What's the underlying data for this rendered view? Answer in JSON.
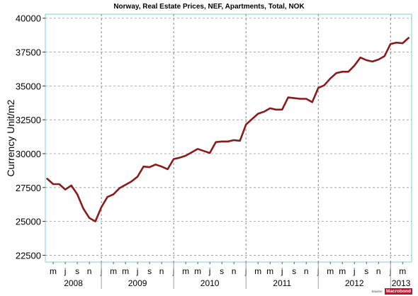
{
  "chart_data": {
    "type": "line",
    "title": "Norway, Real Estate Prices, NEF, Apartments, Total, NOK",
    "ylabel": "Currency Unit/m2",
    "xlabel": "",
    "ylim": [
      22000,
      40300
    ],
    "y_ticks": [
      22500,
      25000,
      27500,
      30000,
      32500,
      35000,
      37500,
      40000
    ],
    "y_tick_labels": [
      "22500",
      "25000",
      "27500",
      "30000",
      "32500",
      "35000",
      "37500",
      "40000"
    ],
    "x_month_ticks": [
      {
        "date": "2008-05",
        "label": "m"
      },
      {
        "date": "2008-07",
        "label": "j"
      },
      {
        "date": "2008-09",
        "label": "s"
      },
      {
        "date": "2008-11",
        "label": "n"
      },
      {
        "date": "2009-01",
        "label": "j"
      },
      {
        "date": "2009-03",
        "label": "m"
      },
      {
        "date": "2009-05",
        "label": "m"
      },
      {
        "date": "2009-07",
        "label": "j"
      },
      {
        "date": "2009-09",
        "label": "s"
      },
      {
        "date": "2009-11",
        "label": "n"
      },
      {
        "date": "2010-01",
        "label": "j"
      },
      {
        "date": "2010-03",
        "label": "m"
      },
      {
        "date": "2010-05",
        "label": "m"
      },
      {
        "date": "2010-07",
        "label": "j"
      },
      {
        "date": "2010-09",
        "label": "s"
      },
      {
        "date": "2010-11",
        "label": "n"
      },
      {
        "date": "2011-01",
        "label": "j"
      },
      {
        "date": "2011-03",
        "label": "m"
      },
      {
        "date": "2011-05",
        "label": "m"
      },
      {
        "date": "2011-07",
        "label": "j"
      },
      {
        "date": "2011-09",
        "label": "s"
      },
      {
        "date": "2011-11",
        "label": "n"
      },
      {
        "date": "2012-01",
        "label": "j"
      },
      {
        "date": "2012-03",
        "label": "m"
      },
      {
        "date": "2012-05",
        "label": "m"
      },
      {
        "date": "2012-07",
        "label": "j"
      },
      {
        "date": "2012-09",
        "label": "s"
      },
      {
        "date": "2012-11",
        "label": "n"
      },
      {
        "date": "2013-01",
        "label": "j"
      },
      {
        "date": "2013-03",
        "label": "m"
      }
    ],
    "x_year_labels": [
      "2008",
      "2009",
      "2010",
      "2011",
      "2012",
      "2013"
    ],
    "grid": true,
    "grid_style": "dashed",
    "legend": "none",
    "series": [
      {
        "color": "#8b1a1a",
        "points": [
          [
            "2008-04",
            28150
          ],
          [
            "2008-05",
            27750
          ],
          [
            "2008-06",
            27750
          ],
          [
            "2008-07",
            27350
          ],
          [
            "2008-08",
            27650
          ],
          [
            "2008-09",
            27000
          ],
          [
            "2008-10",
            25950
          ],
          [
            "2008-11",
            25250
          ],
          [
            "2008-12",
            25000
          ],
          [
            "2009-01",
            26050
          ],
          [
            "2009-02",
            26800
          ],
          [
            "2009-03",
            27000
          ],
          [
            "2009-04",
            27450
          ],
          [
            "2009-05",
            27700
          ],
          [
            "2009-06",
            27950
          ],
          [
            "2009-07",
            28300
          ],
          [
            "2009-08",
            29050
          ],
          [
            "2009-09",
            29000
          ],
          [
            "2009-10",
            29200
          ],
          [
            "2009-11",
            29050
          ],
          [
            "2009-12",
            28850
          ],
          [
            "2010-01",
            29600
          ],
          [
            "2010-02",
            29700
          ],
          [
            "2010-03",
            29850
          ],
          [
            "2010-04",
            30100
          ],
          [
            "2010-05",
            30350
          ],
          [
            "2010-06",
            30200
          ],
          [
            "2010-07",
            30050
          ],
          [
            "2010-08",
            30850
          ],
          [
            "2010-09",
            30900
          ],
          [
            "2010-10",
            30900
          ],
          [
            "2010-11",
            31000
          ],
          [
            "2010-12",
            30950
          ],
          [
            "2011-01",
            32150
          ],
          [
            "2011-02",
            32550
          ],
          [
            "2011-03",
            32950
          ],
          [
            "2011-04",
            33100
          ],
          [
            "2011-05",
            33350
          ],
          [
            "2011-06",
            33250
          ],
          [
            "2011-07",
            33250
          ],
          [
            "2011-08",
            34150
          ],
          [
            "2011-09",
            34100
          ],
          [
            "2011-10",
            34050
          ],
          [
            "2011-11",
            34050
          ],
          [
            "2011-12",
            33800
          ],
          [
            "2012-01",
            34850
          ],
          [
            "2012-02",
            35050
          ],
          [
            "2012-03",
            35550
          ],
          [
            "2012-04",
            35950
          ],
          [
            "2012-05",
            36050
          ],
          [
            "2012-06",
            36050
          ],
          [
            "2012-07",
            36500
          ],
          [
            "2012-08",
            37100
          ],
          [
            "2012-09",
            36900
          ],
          [
            "2012-10",
            36800
          ],
          [
            "2012-11",
            36950
          ],
          [
            "2012-12",
            37200
          ],
          [
            "2013-01",
            38100
          ],
          [
            "2013-02",
            38200
          ],
          [
            "2013-03",
            38150
          ],
          [
            "2013-04",
            38550
          ]
        ]
      }
    ]
  },
  "footer": {
    "source_label": "Source:",
    "brand": "Macrobond"
  }
}
